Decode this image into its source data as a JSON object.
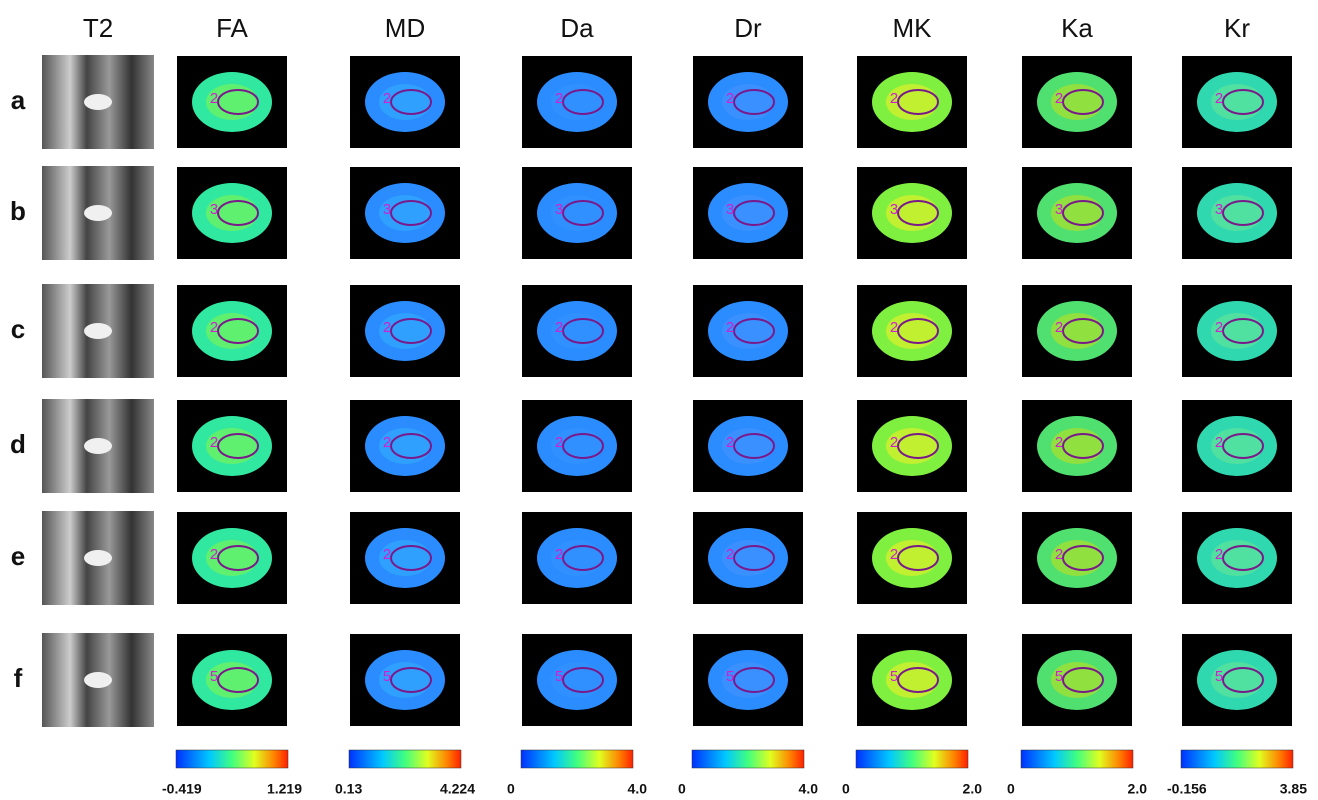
{
  "columns": [
    {
      "label": "T2"
    },
    {
      "label": "FA",
      "min": "-0.419",
      "max": "1.219"
    },
    {
      "label": "MD",
      "min": "0.13",
      "max": "4.224"
    },
    {
      "label": "Da",
      "min": "0",
      "max": "4.0"
    },
    {
      "label": "Dr",
      "min": "0",
      "max": "4.0"
    },
    {
      "label": "MK",
      "min": "0",
      "max": "2.0"
    },
    {
      "label": "Ka",
      "min": "0",
      "max": "2.0"
    },
    {
      "label": "Kr",
      "min": "-0.156",
      "max": "3.85"
    }
  ],
  "rows": [
    {
      "label": "a",
      "roi": "2"
    },
    {
      "label": "b",
      "roi": "3"
    },
    {
      "label": "c",
      "roi": "2"
    },
    {
      "label": "d",
      "roi": "2"
    },
    {
      "label": "e",
      "roi": "2"
    },
    {
      "label": "f",
      "roi": "5"
    }
  ]
}
